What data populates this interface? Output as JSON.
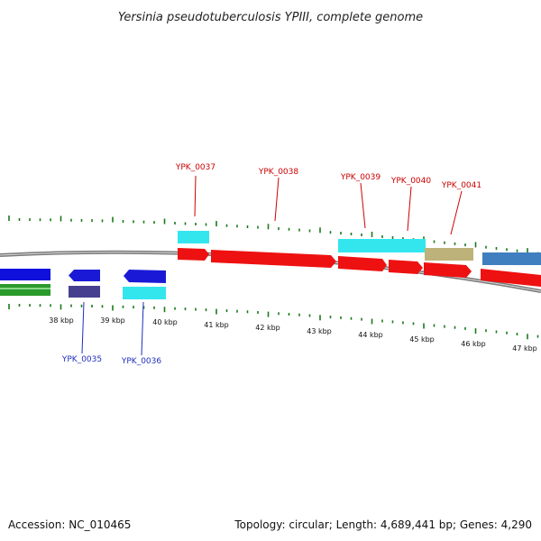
{
  "title": "Yersinia pseudotuberculosis YPIII, complete genome",
  "footer": {
    "accession": "Accession: NC_010465",
    "summary": "Topology: circular; Length: 4,689,441 bp; Genes: 4,290"
  },
  "colors": {
    "forward_label": "#cc0000",
    "reverse_label": "#1f2fbf",
    "tick": "#1a7a1a",
    "backbone": "#7a7a7a"
  },
  "kbp_labels": [
    "38 kbp",
    "39 kbp",
    "40 kbp",
    "41 kbp",
    "42 kbp",
    "43 kbp",
    "44 kbp",
    "45 kbp",
    "46 kbp",
    "47 kbp"
  ],
  "forward_gene_labels": [
    "YPK_0037",
    "YPK_0038",
    "YPK_0039",
    "YPK_0040",
    "YPK_0041"
  ],
  "reverse_gene_labels": [
    "YPK_0035",
    "YPK_0036"
  ]
}
